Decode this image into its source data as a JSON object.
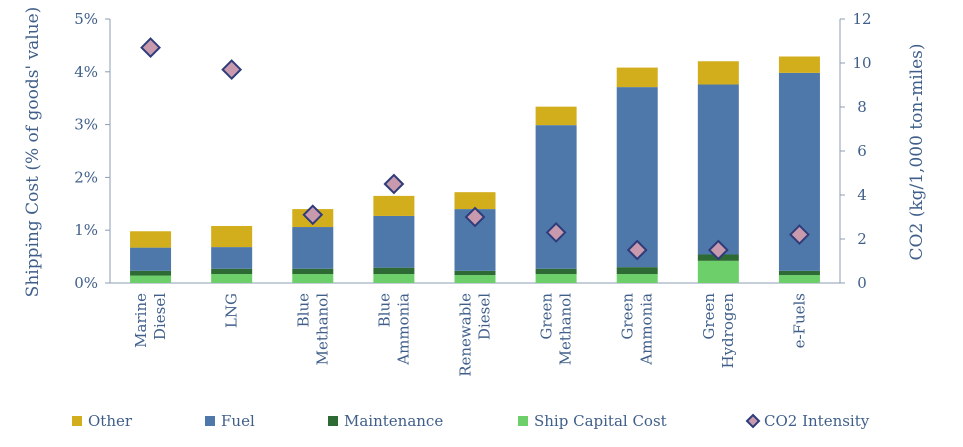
{
  "chart_data": {
    "type": "bar",
    "stacked": true,
    "categories": [
      [
        "Marine",
        "Diesel"
      ],
      [
        "LNG"
      ],
      [
        "Blue",
        "Methanol"
      ],
      [
        "Blue",
        "Ammonia"
      ],
      [
        "Renewable",
        "Diesel"
      ],
      [
        "Green",
        "Methanol"
      ],
      [
        "Green",
        "Ammonia"
      ],
      [
        "Green",
        "Hydrogen"
      ],
      [
        "e-Fuels"
      ]
    ],
    "series": [
      {
        "name": "Ship Capital Cost",
        "color": "#6ccf6a",
        "axis": "left",
        "values": [
          0.14,
          0.17,
          0.17,
          0.17,
          0.15,
          0.17,
          0.17,
          0.42,
          0.15
        ]
      },
      {
        "name": "Maintenance",
        "color": "#2e6b34",
        "axis": "left",
        "values": [
          0.09,
          0.1,
          0.1,
          0.12,
          0.08,
          0.1,
          0.13,
          0.12,
          0.08
        ]
      },
      {
        "name": "Fuel",
        "color": "#4f78aa",
        "axis": "left",
        "values": [
          0.44,
          0.41,
          0.79,
          0.98,
          1.17,
          2.72,
          3.41,
          3.22,
          3.75
        ]
      },
      {
        "name": "Other",
        "color": "#d2ae1c",
        "axis": "left",
        "values": [
          0.31,
          0.4,
          0.34,
          0.38,
          0.32,
          0.35,
          0.37,
          0.44,
          0.31
        ]
      },
      {
        "name": "CO2 Intensity",
        "type": "scatter",
        "marker": "diamond",
        "color": "#c99aae",
        "edge_color": "#2f3c7a",
        "axis": "right",
        "values": [
          10.7,
          9.7,
          3.1,
          4.5,
          3.0,
          2.3,
          1.5,
          1.5,
          2.2
        ]
      }
    ],
    "ylabel": "Shipping Cost (% of goods' value)",
    "y2label": "CO2 (kg/1,000 ton-miles)",
    "ylim": [
      0,
      5
    ],
    "y2lim": [
      0,
      12
    ],
    "yticks": [
      "0%",
      "1%",
      "2%",
      "3%",
      "4%",
      "5%"
    ],
    "y2ticks": [
      "0",
      "2",
      "4",
      "6",
      "8",
      "10",
      "12"
    ],
    "legend_order": [
      "Other",
      "Fuel",
      "Maintenance",
      "Ship Capital Cost",
      "CO2 Intensity"
    ],
    "legend_position": "bottom",
    "grid": false
  }
}
